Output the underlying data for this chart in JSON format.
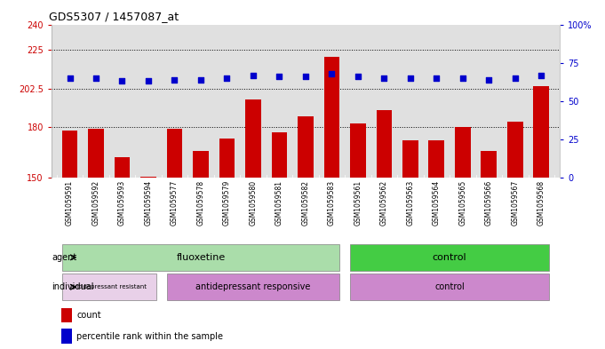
{
  "title": "GDS5307 / 1457087_at",
  "samples": [
    "GSM1059591",
    "GSM1059592",
    "GSM1059593",
    "GSM1059594",
    "GSM1059577",
    "GSM1059578",
    "GSM1059579",
    "GSM1059580",
    "GSM1059581",
    "GSM1059582",
    "GSM1059583",
    "GSM1059561",
    "GSM1059562",
    "GSM1059563",
    "GSM1059564",
    "GSM1059565",
    "GSM1059566",
    "GSM1059567",
    "GSM1059568"
  ],
  "bar_values": [
    178,
    179,
    162,
    151,
    179,
    166,
    173,
    196,
    177,
    186,
    221,
    182,
    190,
    172,
    172,
    180,
    166,
    183,
    204
  ],
  "dot_values": [
    65,
    65,
    63,
    63,
    64,
    64,
    65,
    67,
    66,
    66,
    68,
    66,
    65,
    65,
    65,
    65,
    64,
    65,
    67
  ],
  "ylim_left": [
    150,
    240
  ],
  "ylim_right": [
    0,
    100
  ],
  "yticks_left": [
    150,
    180,
    202.5,
    225,
    240
  ],
  "ytick_labels_left": [
    "150",
    "180",
    "202.5",
    "225",
    "240"
  ],
  "yticks_right": [
    0,
    25,
    50,
    75,
    100
  ],
  "ytick_labels_right": [
    "0",
    "25",
    "50",
    "75",
    "100%"
  ],
  "bar_color": "#cc0000",
  "dot_color": "#0000cc",
  "bg_color": "#e0e0e0",
  "tick_bg_color": "#d0d0d0",
  "agent_fluox_color": "#aaddaa",
  "agent_ctrl_color": "#44cc44",
  "indiv_resistant_color": "#e8d0e8",
  "indiv_responsive_color": "#cc88cc",
  "indiv_ctrl_color": "#cc88cc",
  "legend_count_color": "#cc0000",
  "legend_dot_color": "#0000cc",
  "axis_color_left": "#cc0000",
  "axis_color_right": "#0000cc",
  "n_fluox": 11,
  "n_resistant": 4,
  "n_responsive": 7,
  "n_control": 8
}
